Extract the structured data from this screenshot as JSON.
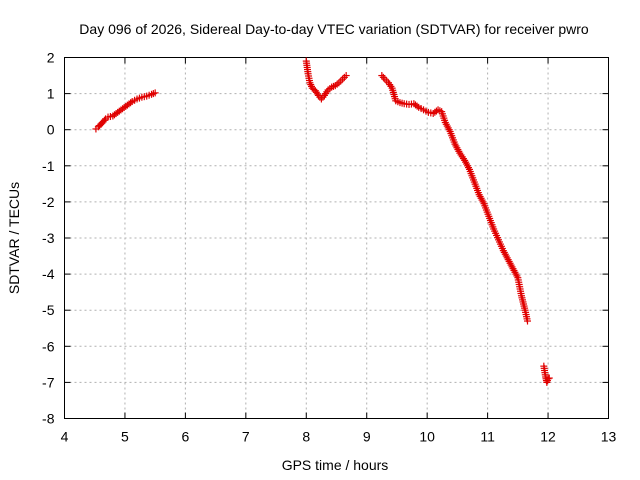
{
  "chart_data": {
    "type": "scatter",
    "title": "Day 096 of 2026, Sidereal Day-to-day VTEC variation (SDTVAR) for receiver pwro",
    "xlabel": "GPS time / hours",
    "ylabel": "SDTVAR / TECUs",
    "xlim": [
      4,
      13
    ],
    "ylim": [
      -8,
      2
    ],
    "xticks": [
      4,
      5,
      6,
      7,
      8,
      9,
      10,
      11,
      12,
      13
    ],
    "yticks": [
      -8,
      -7,
      -6,
      -5,
      -4,
      -3,
      -2,
      -1,
      0,
      1,
      2
    ],
    "grid": true,
    "marker": "+",
    "color": "#e00000",
    "segments": [
      {
        "x": [
          4.52,
          4.56,
          4.6,
          4.64,
          4.68,
          4.72,
          4.8,
          4.88,
          4.96,
          5.04,
          5.12,
          5.2,
          5.28,
          5.36,
          5.44,
          5.5
        ],
        "y": [
          0.02,
          0.08,
          0.15,
          0.22,
          0.3,
          0.35,
          0.38,
          0.48,
          0.58,
          0.68,
          0.78,
          0.85,
          0.9,
          0.93,
          0.98,
          1.02
        ]
      },
      {
        "x": [
          8.0,
          8.03,
          8.06,
          8.1,
          8.15,
          8.2,
          8.25,
          8.3,
          8.36,
          8.42,
          8.48,
          8.54,
          8.6,
          8.66
        ],
        "y": [
          1.9,
          1.55,
          1.3,
          1.15,
          1.08,
          0.95,
          0.85,
          0.95,
          1.1,
          1.18,
          1.22,
          1.3,
          1.4,
          1.5
        ]
      },
      {
        "x": [
          9.25,
          9.3,
          9.36,
          9.42,
          9.48,
          9.55,
          9.62,
          9.7,
          9.78,
          9.86,
          9.94,
          10.02,
          10.1,
          10.18,
          10.24,
          10.3,
          10.38,
          10.46,
          10.54,
          10.62,
          10.7,
          10.78,
          10.86,
          10.94,
          11.02,
          11.1,
          11.18,
          11.26,
          11.34,
          11.42,
          11.5,
          11.56,
          11.62,
          11.66
        ],
        "y": [
          1.5,
          1.4,
          1.3,
          1.15,
          0.8,
          0.75,
          0.72,
          0.7,
          0.72,
          0.62,
          0.55,
          0.48,
          0.45,
          0.55,
          0.5,
          0.2,
          -0.05,
          -0.4,
          -0.65,
          -0.85,
          -1.1,
          -1.45,
          -1.8,
          -2.05,
          -2.4,
          -2.75,
          -3.05,
          -3.35,
          -3.6,
          -3.85,
          -4.1,
          -4.6,
          -5.0,
          -5.3
        ]
      },
      {
        "x": [
          11.93,
          11.96,
          11.98,
          12.0,
          12.02
        ],
        "y": [
          -6.55,
          -6.85,
          -7.0,
          -6.9,
          -6.88
        ]
      }
    ]
  }
}
